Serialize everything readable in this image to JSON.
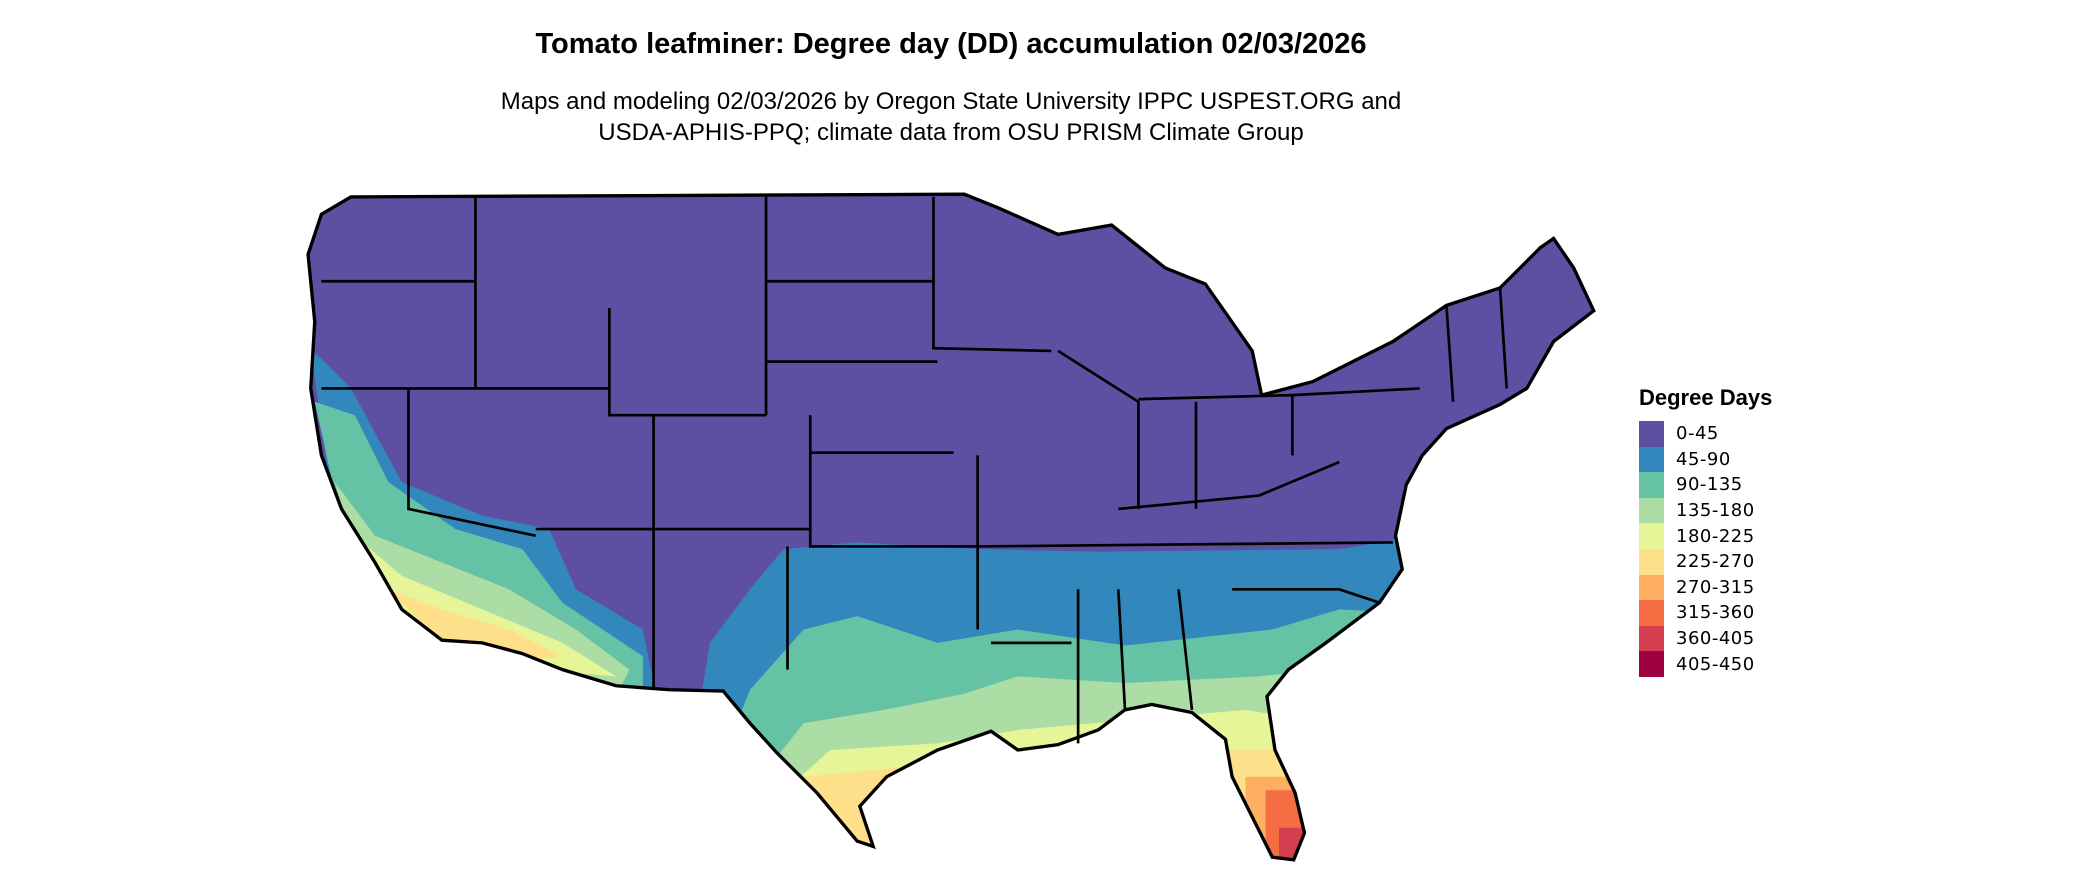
{
  "title": "Tomato leafminer: Degree day (DD) accumulation 02/03/2026",
  "subtitle_line1": "Maps and modeling 02/03/2026 by Oregon State University IPPC USPEST.ORG and",
  "subtitle_line2": "USDA-APHIS-PPQ; climate data from OSU PRISM Climate Group",
  "legend": {
    "title": "Degree Days",
    "items": [
      {
        "label": "0-45",
        "color": "#5E4FA2"
      },
      {
        "label": "45-90",
        "color": "#3288BD"
      },
      {
        "label": "90-135",
        "color": "#66C2A5"
      },
      {
        "label": "135-180",
        "color": "#ABDDA4"
      },
      {
        "label": "180-225",
        "color": "#E6F598"
      },
      {
        "label": "225-270",
        "color": "#FEE08B"
      },
      {
        "label": "270-315",
        "color": "#FDAE61"
      },
      {
        "label": "315-360",
        "color": "#F46D43"
      },
      {
        "label": "360-405",
        "color": "#D53E4F"
      },
      {
        "label": "405-450",
        "color": "#9E0142"
      }
    ]
  },
  "map": {
    "region": "contiguous United States",
    "boundaries": "state lines",
    "legend_placement": "right"
  }
}
